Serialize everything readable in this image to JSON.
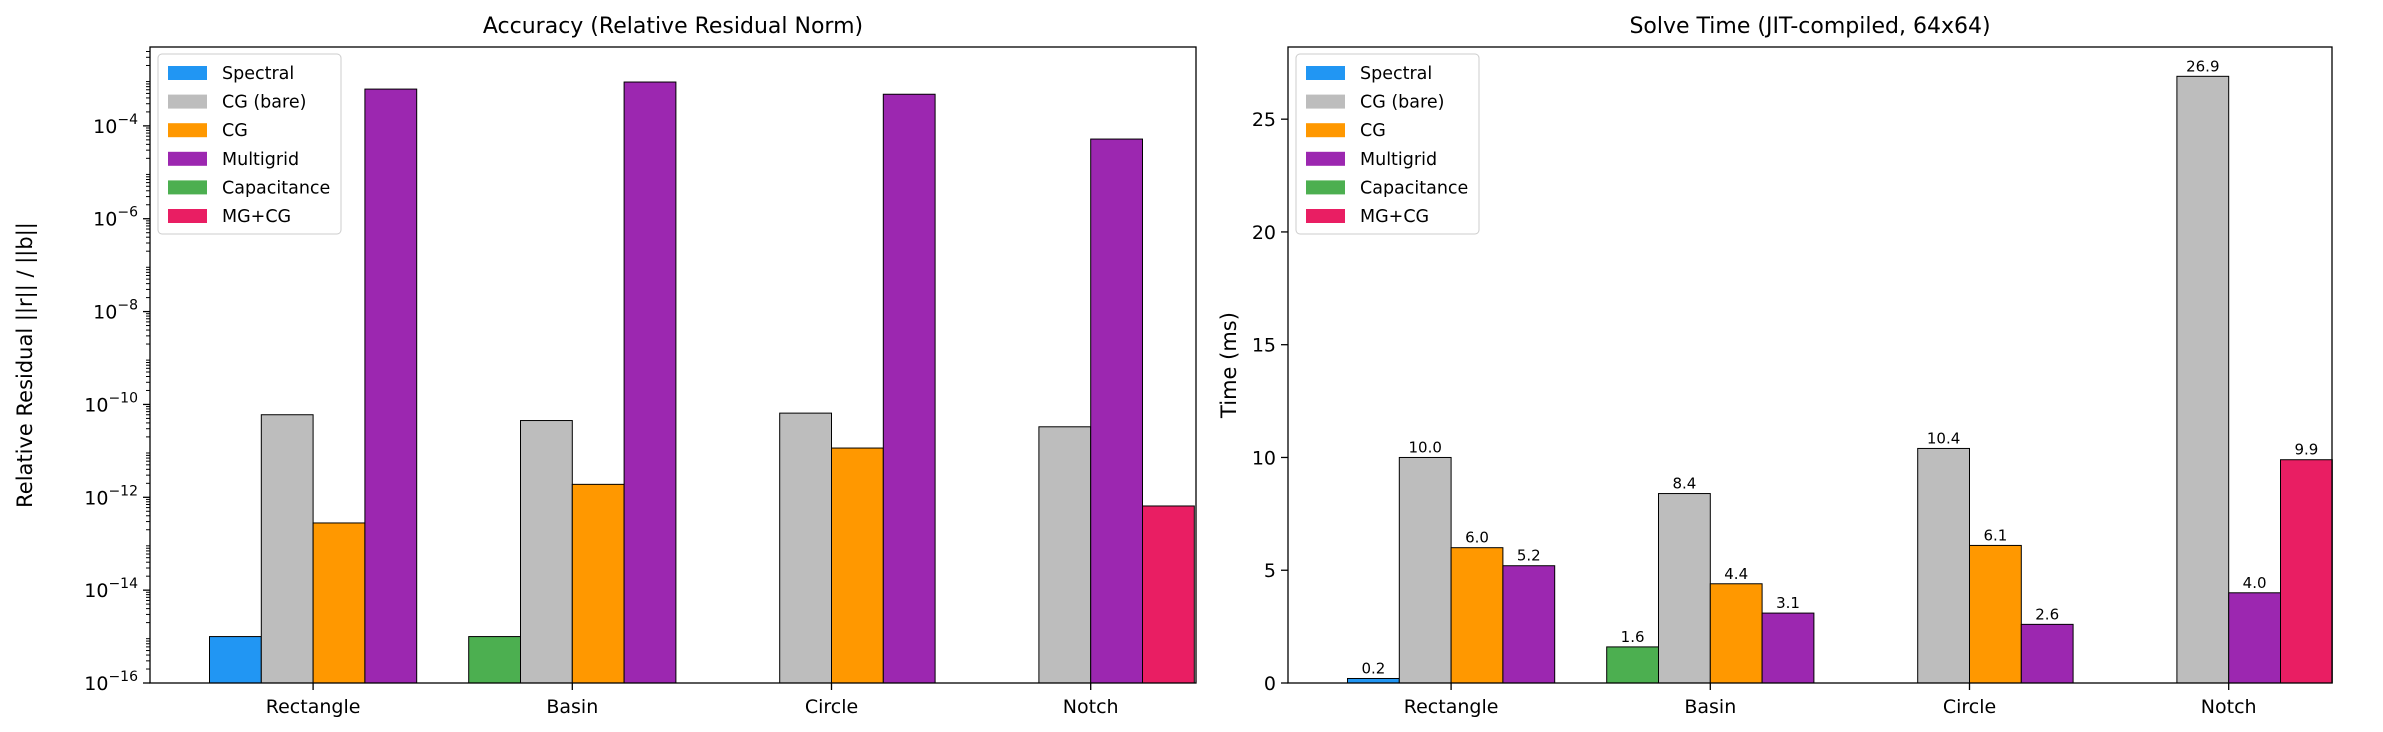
{
  "chart_data": [
    {
      "type": "bar",
      "title": "Accuracy (Relative Residual Norm)",
      "xlabel": "",
      "ylabel": "Relative Residual ||r|| / ||b||",
      "yscale": "log",
      "ylim": [
        1e-16,
        0.005
      ],
      "yticks": [
        {
          "base": "10",
          "exp": "−16",
          "value": 1e-16
        },
        {
          "base": "10",
          "exp": "−14",
          "value": 1e-14
        },
        {
          "base": "10",
          "exp": "−12",
          "value": 1e-12
        },
        {
          "base": "10",
          "exp": "−10",
          "value": 1e-10
        },
        {
          "base": "10",
          "exp": "−8",
          "value": 1e-08
        },
        {
          "base": "10",
          "exp": "−6",
          "value": 1e-06
        },
        {
          "base": "10",
          "exp": "−4",
          "value": 0.0001
        }
      ],
      "legend_position": "top-left",
      "grid": false,
      "categories": [
        "Rectangle",
        "Basin",
        "Circle",
        "Notch"
      ],
      "series": [
        {
          "name": "Spectral",
          "color": "#2196F3",
          "values": [
            1e-15,
            null,
            null,
            null
          ]
        },
        {
          "name": "CG (bare)",
          "color": "#BDBDBD",
          "values": [
            6e-11,
            4.5e-11,
            6.5e-11,
            3.3e-11
          ]
        },
        {
          "name": "CG",
          "color": "#FF9800",
          "values": [
            2.8e-13,
            1.9e-12,
            1.15e-11,
            null
          ]
        },
        {
          "name": "Multigrid",
          "color": "#9C27B0",
          "values": [
            0.00062,
            0.00088,
            0.00048,
            5.2e-05
          ]
        },
        {
          "name": "Capacitance",
          "color": "#4CAF50",
          "values": [
            null,
            1e-15,
            null,
            null
          ]
        },
        {
          "name": "MG+CG",
          "color": "#E91E63",
          "values": [
            null,
            null,
            null,
            6.5e-13
          ]
        }
      ],
      "bars": [
        {
          "cat": 0,
          "series": 0,
          "slot": 0,
          "value": 1e-15
        },
        {
          "cat": 0,
          "series": 1,
          "slot": 1,
          "value": 6e-11
        },
        {
          "cat": 0,
          "series": 2,
          "slot": 2,
          "value": 2.8e-13
        },
        {
          "cat": 0,
          "series": 3,
          "slot": 3,
          "value": 0.00062
        },
        {
          "cat": 1,
          "series": 4,
          "slot": 0,
          "value": 1e-15
        },
        {
          "cat": 1,
          "series": 1,
          "slot": 1,
          "value": 4.5e-11
        },
        {
          "cat": 1,
          "series": 2,
          "slot": 2,
          "value": 1.9e-12
        },
        {
          "cat": 1,
          "series": 3,
          "slot": 3,
          "value": 0.00088
        },
        {
          "cat": 2,
          "series": 1,
          "slot": 1,
          "value": 6.5e-11
        },
        {
          "cat": 2,
          "series": 2,
          "slot": 2,
          "value": 1.15e-11
        },
        {
          "cat": 2,
          "series": 3,
          "slot": 3,
          "value": 0.00048
        },
        {
          "cat": 3,
          "series": 1,
          "slot": 1,
          "value": 3.3e-11
        },
        {
          "cat": 3,
          "series": 3,
          "slot": 2,
          "value": 5.2e-05
        },
        {
          "cat": 3,
          "series": 5,
          "slot": 3,
          "value": 6.5e-13
        }
      ]
    },
    {
      "type": "bar",
      "title": "Solve Time (JIT-compiled, 64x64)",
      "xlabel": "",
      "ylabel": "Time (ms)",
      "yscale": "linear",
      "ylim": [
        0,
        28.2
      ],
      "yticks": [
        {
          "label": "0",
          "value": 0
        },
        {
          "label": "5",
          "value": 5
        },
        {
          "label": "10",
          "value": 10
        },
        {
          "label": "15",
          "value": 15
        },
        {
          "label": "20",
          "value": 20
        },
        {
          "label": "25",
          "value": 25
        }
      ],
      "legend_position": "top-left",
      "grid": false,
      "categories": [
        "Rectangle",
        "Basin",
        "Circle",
        "Notch"
      ],
      "series": [
        {
          "name": "Spectral",
          "color": "#2196F3",
          "values": [
            0.2,
            null,
            null,
            null
          ]
        },
        {
          "name": "CG (bare)",
          "color": "#BDBDBD",
          "values": [
            10.0,
            8.4,
            10.4,
            26.9
          ]
        },
        {
          "name": "CG",
          "color": "#FF9800",
          "values": [
            6.0,
            4.4,
            6.1,
            null
          ]
        },
        {
          "name": "Multigrid",
          "color": "#9C27B0",
          "values": [
            5.2,
            3.1,
            2.6,
            4.0
          ]
        },
        {
          "name": "Capacitance",
          "color": "#4CAF50",
          "values": [
            null,
            1.6,
            null,
            null
          ]
        },
        {
          "name": "MG+CG",
          "color": "#E91E63",
          "values": [
            null,
            null,
            null,
            9.9
          ]
        }
      ],
      "bars": [
        {
          "cat": 0,
          "series": 0,
          "slot": 0,
          "value": 0.2,
          "label": "0.2"
        },
        {
          "cat": 0,
          "series": 1,
          "slot": 1,
          "value": 10.0,
          "label": "10.0"
        },
        {
          "cat": 0,
          "series": 2,
          "slot": 2,
          "value": 6.0,
          "label": "6.0"
        },
        {
          "cat": 0,
          "series": 3,
          "slot": 3,
          "value": 5.2,
          "label": "5.2"
        },
        {
          "cat": 1,
          "series": 4,
          "slot": 0,
          "value": 1.6,
          "label": "1.6"
        },
        {
          "cat": 1,
          "series": 1,
          "slot": 1,
          "value": 8.4,
          "label": "8.4"
        },
        {
          "cat": 1,
          "series": 2,
          "slot": 2,
          "value": 4.4,
          "label": "4.4"
        },
        {
          "cat": 1,
          "series": 3,
          "slot": 3,
          "value": 3.1,
          "label": "3.1"
        },
        {
          "cat": 2,
          "series": 1,
          "slot": 1,
          "value": 10.4,
          "label": "10.4"
        },
        {
          "cat": 2,
          "series": 2,
          "slot": 2,
          "value": 6.1,
          "label": "6.1"
        },
        {
          "cat": 2,
          "series": 3,
          "slot": 3,
          "value": 2.6,
          "label": "2.6"
        },
        {
          "cat": 3,
          "series": 1,
          "slot": 1,
          "value": 26.9,
          "label": "26.9"
        },
        {
          "cat": 3,
          "series": 3,
          "slot": 2,
          "value": 4.0,
          "label": "4.0"
        },
        {
          "cat": 3,
          "series": 5,
          "slot": 3,
          "value": 9.9,
          "label": "9.9"
        }
      ]
    }
  ]
}
